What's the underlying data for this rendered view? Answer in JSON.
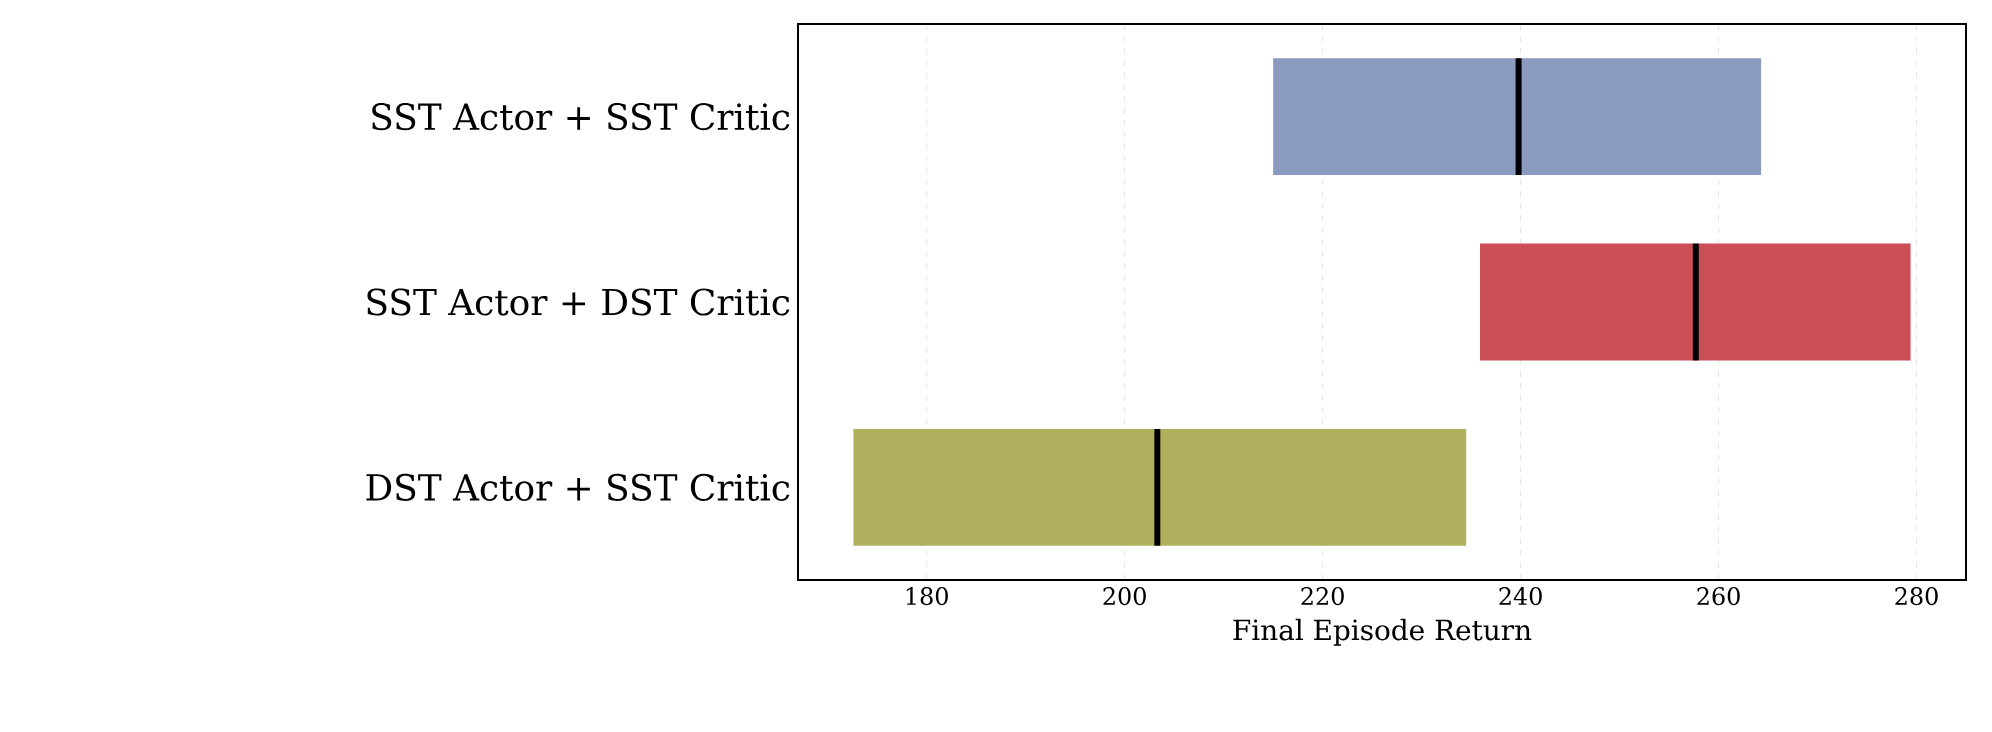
{
  "chart_data": {
    "type": "box",
    "orientation": "horizontal",
    "xlabel": "Final Episode Return",
    "categories": [
      "SST Actor + SST Critic",
      "SST Actor + DST Critic",
      "DST Actor + SST Critic"
    ],
    "boxes": [
      {
        "low": 215.0,
        "q1": 215.0,
        "median": 239.8,
        "q3": 264.3,
        "high": 264.3
      },
      {
        "low": 235.9,
        "q1": 235.9,
        "median": 257.7,
        "q3": 279.4,
        "high": 279.4
      },
      {
        "low": 172.6,
        "q1": 172.6,
        "median": 203.3,
        "q3": 234.5,
        "high": 234.5
      }
    ],
    "colors": [
      "#8a9bbf",
      "#cc4f58",
      "#b1b05e"
    ],
    "xlim": [
      167,
      285
    ],
    "xticks": [
      180,
      200,
      220,
      240,
      260,
      280
    ],
    "grid": "x"
  }
}
